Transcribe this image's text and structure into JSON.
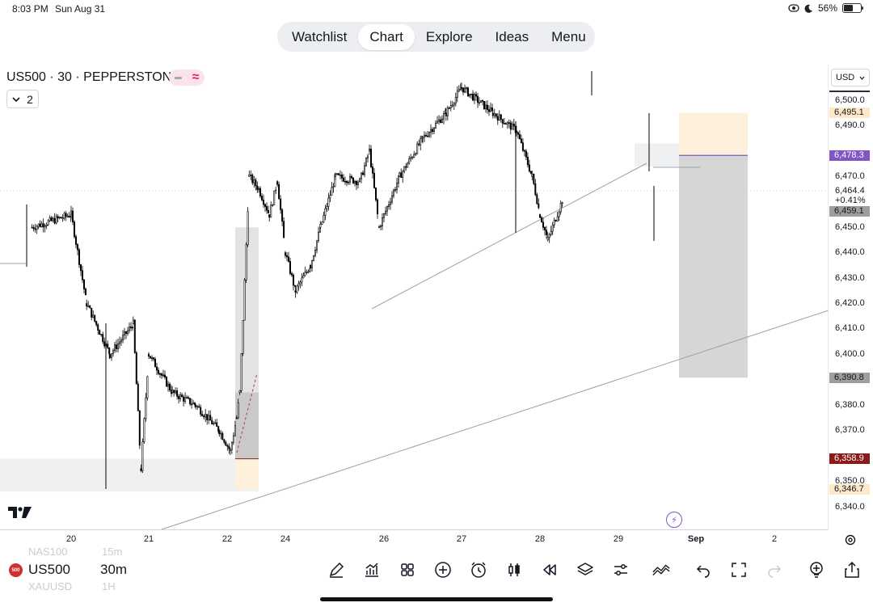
{
  "status_bar": {
    "time": "8:03 PM",
    "date": "Sun Aug 31",
    "battery": "56%",
    "battery_level": 0.56
  },
  "nav": {
    "tabs": [
      "Watchlist",
      "Chart",
      "Explore",
      "Ideas",
      "Menu"
    ],
    "active": "Chart"
  },
  "header": {
    "symbol_title": "US500 · 30 · PEPPERSTONE",
    "indicator_count": "2"
  },
  "price_axis": {
    "currency": "USD",
    "ticks": [
      "6,500.0",
      "6,490.0",
      "6,470.0",
      "6,450.0",
      "6,440.0",
      "6,430.0",
      "6,420.0",
      "6,410.0",
      "6,400.0",
      "6,380.0",
      "6,370.0",
      "6,350.0",
      "6,340.0"
    ],
    "labels": [
      {
        "text": "6,495.1",
        "style": "cream"
      },
      {
        "text": "6,478.3",
        "style": "purple"
      },
      {
        "text": "6,459.1",
        "style": "gray"
      },
      {
        "text": "6,390.8",
        "style": "gray"
      },
      {
        "text": "6,358.9",
        "style": "maroon"
      },
      {
        "text": "6,346.7",
        "style": "cream"
      }
    ],
    "last_price": "6,464.4",
    "last_change": "+0.41%"
  },
  "time_axis": {
    "ticks": [
      "20",
      "21",
      "22",
      "24",
      "26",
      "27",
      "28",
      "29",
      "Sep",
      "2"
    ]
  },
  "bottom_bar": {
    "ghost_prev_symbol": "NAS100",
    "ghost_prev_interval": "15m",
    "ghost_next_symbol": "XAUUSD",
    "ghost_next_interval": "1H",
    "symbol": "US500",
    "symbol_icon_text": "500",
    "interval": "30m"
  },
  "colors": {
    "accent": "#7e57c2",
    "bull": "#000000",
    "short_zone": "#d6d6d6",
    "target_zone": "#fdf1dc"
  },
  "chart_data": {
    "type": "candlestick",
    "symbol": "US500",
    "interval": "30",
    "ylim": [
      6335,
      6510
    ],
    "x": [
      "20",
      "21",
      "22",
      "24",
      "26",
      "27",
      "28",
      "29",
      "Sep",
      "2"
    ],
    "close_path": [
      [
        19.5,
        6450
      ],
      [
        20.0,
        6455
      ],
      [
        20.2,
        6420
      ],
      [
        20.5,
        6400
      ],
      [
        20.8,
        6412
      ],
      [
        20.9,
        6355
      ],
      [
        21.0,
        6400
      ],
      [
        21.3,
        6385
      ],
      [
        21.6,
        6380
      ],
      [
        21.9,
        6370
      ],
      [
        22.1,
        6362
      ],
      [
        22.3,
        6375
      ],
      [
        22.4,
        6385
      ],
      [
        22.7,
        6470
      ],
      [
        23.0,
        6465
      ],
      [
        23.4,
        6455
      ],
      [
        23.7,
        6468
      ],
      [
        24.0,
        6440
      ],
      [
        24.2,
        6425
      ],
      [
        24.5,
        6435
      ],
      [
        24.7,
        6450
      ],
      [
        25.0,
        6470
      ],
      [
        25.5,
        6468
      ],
      [
        25.7,
        6480
      ],
      [
        25.9,
        6450
      ],
      [
        26.2,
        6470
      ],
      [
        26.5,
        6485
      ],
      [
        26.8,
        6495
      ],
      [
        27.0,
        6505
      ],
      [
        27.4,
        6495
      ],
      [
        27.7,
        6488
      ],
      [
        27.9,
        6470
      ],
      [
        28.0,
        6455
      ],
      [
        28.1,
        6445
      ],
      [
        28.3,
        6462
      ]
    ],
    "annotations": {
      "trendlines": 3,
      "short_position": {
        "entry": 6478.3,
        "stop": 6495.1,
        "target": 6390.8
      },
      "long_position": {
        "entry": 6358.9,
        "target": 6346.7
      }
    }
  }
}
